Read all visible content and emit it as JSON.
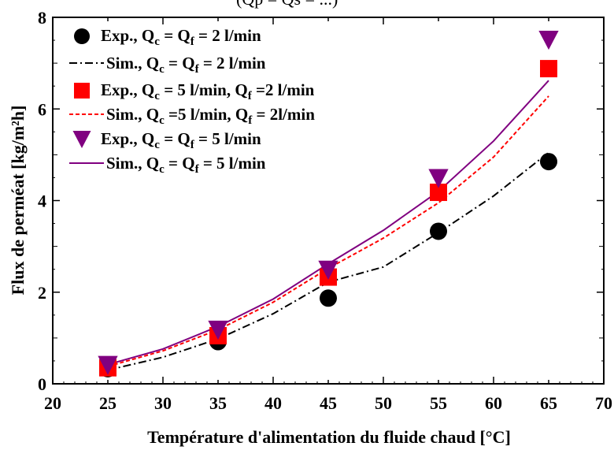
{
  "top_fragment": "(Qp = Qs = ...)",
  "chart_data": {
    "type": "scatter",
    "xlabel": "Température d'alimentation du fluide chaud [°C]",
    "ylabel": "Flux de perméat [kg/m²h]",
    "xlim": [
      20,
      70
    ],
    "ylim": [
      0,
      8
    ],
    "xticks": [
      "20",
      "25",
      "30",
      "35",
      "40",
      "45",
      "50",
      "55",
      "60",
      "65",
      "70"
    ],
    "yticks": [
      "0",
      "2",
      "4",
      "6",
      "8"
    ],
    "grid": false,
    "legend_position": "top-left",
    "series": [
      {
        "kind": "marker",
        "marker": "circle",
        "color": "#000000",
        "label_main": "Exp., Q",
        "label_parts": [
          [
            "c",
            " = Q"
          ],
          [
            "f",
            " = 2 l/min"
          ]
        ],
        "x": [
          25,
          35,
          45,
          55,
          65
        ],
        "y": [
          0.33,
          0.92,
          1.87,
          3.33,
          4.85
        ]
      },
      {
        "kind": "line",
        "dash": "10,4,2,4",
        "color": "#000000",
        "label_main": "Sim., Q",
        "label_parts": [
          [
            "c",
            " = Q"
          ],
          [
            "f",
            " = 2 l/min"
          ]
        ],
        "x": [
          25,
          30,
          35,
          40,
          45,
          50,
          55,
          60,
          65
        ],
        "y": [
          0.3,
          0.58,
          0.98,
          1.53,
          2.22,
          2.55,
          3.3,
          4.1,
          5.05
        ]
      },
      {
        "kind": "marker",
        "marker": "square",
        "color": "#ff0000",
        "label_main": "Exp., Q",
        "label_parts": [
          [
            "c",
            " = 5 l/min, Q"
          ],
          [
            "f",
            " =2 l/min"
          ]
        ],
        "x": [
          25,
          35,
          45,
          55,
          65
        ],
        "y": [
          0.35,
          1.05,
          2.33,
          4.18,
          6.88
        ]
      },
      {
        "kind": "line",
        "dash": "5,3",
        "color": "#ff0000",
        "label_main": "Sim., Q",
        "label_parts": [
          [
            "c",
            " =5 l/min, Q"
          ],
          [
            "f",
            " = 2l/min"
          ]
        ],
        "x": [
          25,
          30,
          35,
          40,
          45,
          50,
          55,
          60,
          65
        ],
        "y": [
          0.38,
          0.72,
          1.18,
          1.78,
          2.52,
          3.18,
          3.95,
          4.95,
          6.28
        ]
      },
      {
        "kind": "marker",
        "marker": "triangle-down",
        "color": "#800080",
        "label_main": "Exp., Q",
        "label_parts": [
          [
            "c",
            " = Q"
          ],
          [
            "f",
            " = 5 l/min"
          ]
        ],
        "x": [
          25,
          35,
          45,
          55,
          65
        ],
        "y": [
          0.4,
          1.17,
          2.48,
          4.48,
          7.5
        ]
      },
      {
        "kind": "line",
        "dash": "",
        "color": "#800080",
        "label_main": "Sim., Q",
        "label_parts": [
          [
            "c",
            " = Q"
          ],
          [
            "f",
            " = 5 l/min"
          ]
        ],
        "x": [
          25,
          30,
          35,
          40,
          45,
          50,
          55,
          60,
          65
        ],
        "y": [
          0.42,
          0.76,
          1.25,
          1.85,
          2.62,
          3.35,
          4.2,
          5.3,
          6.62
        ]
      }
    ]
  }
}
